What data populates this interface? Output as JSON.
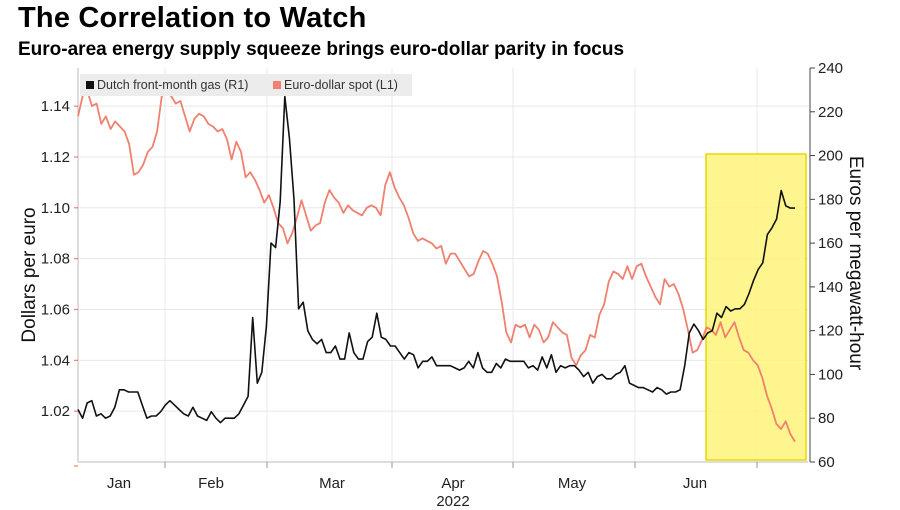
{
  "title": "The Correlation to Watch",
  "subtitle": "Euro-area energy supply squeeze brings euro-dollar parity in focus",
  "chart_data": {
    "type": "line",
    "title": "The Correlation to Watch",
    "subtitle": "Euro-area energy supply squeeze brings euro-dollar parity in focus",
    "xlabel": "2022",
    "x_ticks": [
      "Jan",
      "Feb",
      "Mar",
      "Apr",
      "May",
      "Jun"
    ],
    "y_left": {
      "label": "Dollars per euro",
      "ylim": [
        1.0,
        1.155
      ],
      "ticks": [
        1.02,
        1.04,
        1.06,
        1.08,
        1.1,
        1.12,
        1.14
      ],
      "tick_labels": [
        "1.02",
        "1.04",
        "1.06",
        "1.08",
        "1.10",
        "1.12",
        "1.14"
      ]
    },
    "y_right": {
      "label": "Euros per megawatt-hour",
      "ylim": [
        60,
        240
      ],
      "ticks": [
        60,
        80,
        100,
        120,
        140,
        160,
        180,
        200,
        220,
        240
      ],
      "tick_labels": [
        "60",
        "80",
        "100",
        "120",
        "140",
        "160",
        "180",
        "200",
        "220",
        "240"
      ]
    },
    "grid": true,
    "legend_position": "top-left",
    "highlight_region": {
      "description": "June onward highlighted",
      "color": "#fff37a",
      "border": "#e8d800"
    },
    "series": [
      {
        "name": "Dutch front-month gas (R1)",
        "axis": "right",
        "color": "#111111",
        "values": [
          84,
          80,
          87,
          88,
          81,
          82,
          80,
          81,
          85,
          93,
          93,
          92,
          92,
          92,
          86,
          80,
          81,
          81,
          83,
          86,
          88,
          86,
          84,
          82,
          81,
          85,
          81,
          80,
          79,
          83,
          80,
          78,
          80,
          80,
          80,
          82,
          86,
          90,
          126,
          96,
          101,
          122,
          160,
          158,
          179,
          227,
          208,
          180,
          130,
          133,
          120,
          116,
          114,
          116,
          110,
          110,
          113,
          107,
          107,
          119,
          110,
          107,
          107,
          115,
          117,
          128,
          117,
          116,
          113,
          113,
          110,
          107,
          110,
          109,
          103,
          106,
          106,
          108,
          104,
          104,
          104,
          104,
          103,
          102,
          103,
          106,
          103,
          110,
          103,
          101,
          101,
          105,
          103,
          107,
          106,
          106,
          106,
          106,
          103,
          104,
          102,
          108,
          103,
          109,
          101,
          104,
          103,
          104,
          104,
          102,
          99,
          101,
          96,
          99,
          100,
          98,
          98,
          100,
          101,
          104,
          96,
          95,
          94,
          94,
          93,
          92,
          94,
          93,
          91,
          92,
          92,
          93,
          104,
          119,
          123,
          120,
          116,
          119,
          120,
          128,
          126,
          131,
          129,
          130,
          130,
          132,
          137,
          143,
          148,
          151,
          164,
          167,
          171,
          184,
          177,
          176,
          176
        ],
        "x_start_fraction": 0.0
      },
      {
        "name": "Euro-dollar spot (L1)",
        "axis": "left",
        "color": "#f08070",
        "values": [
          1.136,
          1.144,
          1.146,
          1.14,
          1.141,
          1.133,
          1.136,
          1.131,
          1.134,
          1.132,
          1.13,
          1.125,
          1.113,
          1.114,
          1.117,
          1.122,
          1.124,
          1.13,
          1.144,
          1.145,
          1.144,
          1.141,
          1.142,
          1.136,
          1.13,
          1.135,
          1.137,
          1.136,
          1.133,
          1.132,
          1.13,
          1.131,
          1.127,
          1.119,
          1.126,
          1.122,
          1.112,
          1.114,
          1.111,
          1.107,
          1.102,
          1.105,
          1.1,
          1.094,
          1.092,
          1.086,
          1.09,
          1.096,
          1.103,
          1.097,
          1.091,
          1.093,
          1.094,
          1.102,
          1.107,
          1.104,
          1.102,
          1.098,
          1.101,
          1.099,
          1.098,
          1.097,
          1.1,
          1.101,
          1.1,
          1.097,
          1.109,
          1.114,
          1.108,
          1.104,
          1.101,
          1.096,
          1.09,
          1.087,
          1.088,
          1.087,
          1.086,
          1.084,
          1.085,
          1.078,
          1.082,
          1.082,
          1.079,
          1.076,
          1.073,
          1.074,
          1.079,
          1.083,
          1.082,
          1.078,
          1.073,
          1.063,
          1.051,
          1.047,
          1.054,
          1.053,
          1.054,
          1.049,
          1.054,
          1.052,
          1.047,
          1.049,
          1.055,
          1.053,
          1.051,
          1.05,
          1.041,
          1.038,
          1.042,
          1.044,
          1.05,
          1.049,
          1.058,
          1.062,
          1.071,
          1.075,
          1.074,
          1.072,
          1.077,
          1.072,
          1.077,
          1.078,
          1.073,
          1.069,
          1.065,
          1.062,
          1.072,
          1.069,
          1.07,
          1.066,
          1.06,
          1.052,
          1.043,
          1.044,
          1.048,
          1.053,
          1.052,
          1.05,
          1.055,
          1.049,
          1.052,
          1.055,
          1.049,
          1.044,
          1.043,
          1.04,
          1.038,
          1.033,
          1.026,
          1.021,
          1.015,
          1.013,
          1.016,
          1.011,
          1.008
        ],
        "x_start_fraction": 0.0
      }
    ]
  }
}
